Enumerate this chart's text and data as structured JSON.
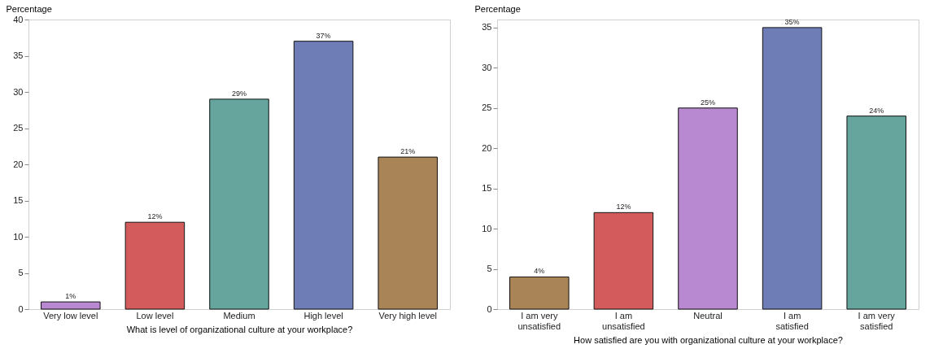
{
  "chart_data": [
    {
      "type": "bar",
      "ylabel": "Percentage",
      "xlabel": "What is level of organizational culture at your workplace?",
      "categories": [
        "Very low level",
        "Low level",
        "Medium",
        "High level",
        "Very high level"
      ],
      "values": [
        1,
        12,
        29,
        37,
        21
      ],
      "colors": [
        "#b888d0",
        "#d35b5b",
        "#66a59e",
        "#6e7db5",
        "#a98457"
      ],
      "value_labels": [
        "1%",
        "12%",
        "29%",
        "37%",
        "21%"
      ],
      "ylim": [
        0,
        40
      ],
      "yticks": [
        0,
        5,
        10,
        15,
        20,
        25,
        30,
        35,
        40
      ],
      "grid": false
    },
    {
      "type": "bar",
      "ylabel": "Percentage",
      "xlabel": "How satisfied are you with organizational culture at your workplace?",
      "categories": [
        "I am very unsatisfied",
        "I am unsatisfied",
        "Neutral",
        "I am satisfied",
        "I am very satisfied"
      ],
      "values": [
        4,
        12,
        25,
        35,
        24
      ],
      "colors": [
        "#a98457",
        "#d35b5b",
        "#b888d0",
        "#6e7db5",
        "#66a59e"
      ],
      "value_labels": [
        "4%",
        "12%",
        "25%",
        "35%",
        "24%"
      ],
      "ylim": [
        0,
        36
      ],
      "yticks": [
        0,
        5,
        10,
        15,
        20,
        25,
        30,
        35
      ],
      "grid": false
    }
  ]
}
